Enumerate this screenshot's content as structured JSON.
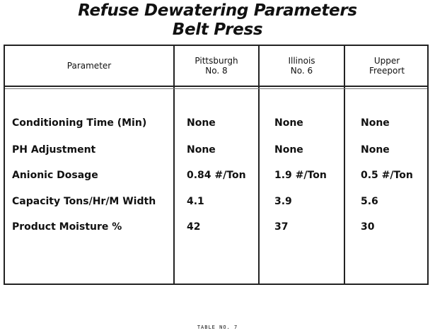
{
  "title_line1": "Refuse Dewatering Parameters",
  "title_line2": "Belt Press",
  "table": {
    "headers": [
      {
        "line1": "Parameter",
        "line2": ""
      },
      {
        "line1": "Pittsburgh",
        "line2": "No. 8"
      },
      {
        "line1": "Illinois",
        "line2": "No. 6"
      },
      {
        "line1": "Upper",
        "line2": "Freeport"
      }
    ],
    "rows": [
      {
        "label": "Conditioning Time (Min)",
        "values": [
          "None",
          "None",
          "None"
        ]
      },
      {
        "label": "PH Adjustment",
        "values": [
          "None",
          "None",
          "None"
        ]
      },
      {
        "label": "Anionic Dosage",
        "values": [
          "0.84 #/Ton",
          "1.9 #/Ton",
          "0.5 #/Ton"
        ]
      },
      {
        "label": "Capacity Tons/Hr/M Width",
        "values": [
          "4.1",
          "3.9",
          "5.6"
        ]
      },
      {
        "label": "Product Moisture %",
        "values": [
          "42",
          "37",
          "30"
        ]
      }
    ]
  },
  "footer": "TABLE NO. 7"
}
